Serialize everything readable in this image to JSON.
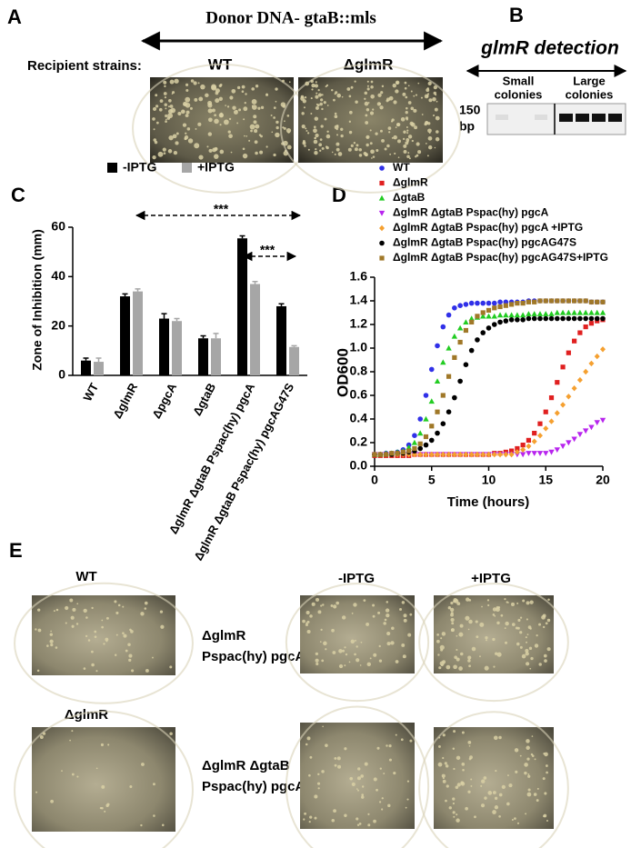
{
  "panels": {
    "A": {
      "label": "A",
      "title": "Donor DNA- gtaB::mls",
      "recipient_label": "Recipient strains:",
      "strains": [
        "WT",
        "ΔglmR"
      ]
    },
    "B": {
      "label": "B",
      "title": "glmR detection",
      "lanes": [
        [
          "Small",
          "colonies"
        ],
        [
          "Large",
          "colonies"
        ]
      ],
      "size_marker": [
        "150",
        "bp"
      ]
    },
    "C": {
      "label": "C"
    },
    "D": {
      "label": "D"
    },
    "E": {
      "label": "E",
      "wt": "WT",
      "glmr": "ΔglmR",
      "columns": [
        "-IPTG",
        "+IPTG"
      ],
      "strain1": [
        "ΔglmR",
        "Pspac(hy) pgcA"
      ],
      "strain2": [
        "ΔglmR ΔgtaB",
        "Pspac(hy) pgcA"
      ]
    }
  },
  "chart_data": [
    {
      "type": "bar",
      "ylabel": "Zone of Inhibition (mm)",
      "categories": [
        "WT",
        "ΔglmR",
        "ΔpgcA",
        "ΔgtaB",
        "ΔglmR ΔgtaB Pspac(hy) pgcA",
        "ΔglmR ΔgtaB Pspac(hy) pgcAG47S"
      ],
      "series": [
        {
          "name": "-IPTG",
          "color": "#000000",
          "values": [
            6,
            32,
            23,
            15,
            55.5,
            28
          ],
          "errors": [
            1,
            1,
            2,
            1,
            1,
            1
          ]
        },
        {
          "name": "+IPTG",
          "color": "#a6a6a6",
          "values": [
            5.5,
            34,
            22,
            15,
            37,
            11.5
          ],
          "errors": [
            1.5,
            1,
            1,
            2,
            1,
            0.5
          ]
        }
      ],
      "ylim": [
        0,
        60
      ],
      "yticks": [
        0,
        20,
        40,
        60
      ],
      "grid": false,
      "legend": "top",
      "annotations": [
        "***",
        "***"
      ]
    },
    {
      "type": "scatter",
      "xlabel": "Time (hours)",
      "ylabel": "OD600",
      "x": [
        0,
        0.5,
        1,
        1.5,
        2,
        2.5,
        3,
        3.5,
        4,
        4.5,
        5,
        5.5,
        6,
        6.5,
        7,
        7.5,
        8,
        8.5,
        9,
        9.5,
        10,
        10.5,
        11,
        11.5,
        12,
        12.5,
        13,
        13.5,
        14,
        14.5,
        15,
        15.5,
        16,
        16.5,
        17,
        17.5,
        18,
        18.5,
        19,
        19.5,
        20
      ],
      "series": [
        {
          "name": "WT",
          "color": "#3030e8",
          "marker": "circle",
          "values": [
            0.1,
            0.1,
            0.11,
            0.11,
            0.12,
            0.14,
            0.18,
            0.26,
            0.4,
            0.6,
            0.82,
            1.02,
            1.18,
            1.28,
            1.34,
            1.36,
            1.37,
            1.38,
            1.38,
            1.38,
            1.38,
            1.38,
            1.39,
            1.39,
            1.39,
            1.39,
            1.39,
            1.4,
            1.4,
            1.4,
            1.4,
            1.4,
            1.4,
            1.4,
            1.4,
            1.4,
            1.4,
            1.4,
            1.39,
            1.39,
            1.39
          ]
        },
        {
          "name": "ΔglmR",
          "color": "#e02020",
          "marker": "square",
          "values": [
            0.09,
            0.09,
            0.09,
            0.09,
            0.09,
            0.09,
            0.09,
            0.1,
            0.1,
            0.1,
            0.1,
            0.1,
            0.1,
            0.1,
            0.1,
            0.1,
            0.1,
            0.1,
            0.1,
            0.1,
            0.1,
            0.11,
            0.11,
            0.12,
            0.13,
            0.15,
            0.18,
            0.22,
            0.28,
            0.36,
            0.46,
            0.58,
            0.71,
            0.84,
            0.96,
            1.06,
            1.13,
            1.18,
            1.21,
            1.23,
            1.24
          ]
        },
        {
          "name": "ΔgtaB",
          "color": "#22cc22",
          "marker": "triangle",
          "values": [
            0.1,
            0.1,
            0.11,
            0.11,
            0.12,
            0.13,
            0.16,
            0.2,
            0.28,
            0.4,
            0.55,
            0.72,
            0.88,
            1.0,
            1.1,
            1.17,
            1.22,
            1.25,
            1.26,
            1.27,
            1.27,
            1.27,
            1.28,
            1.28,
            1.28,
            1.28,
            1.28,
            1.29,
            1.29,
            1.29,
            1.29,
            1.29,
            1.3,
            1.3,
            1.3,
            1.3,
            1.3,
            1.3,
            1.3,
            1.3,
            1.3
          ]
        },
        {
          "name": "ΔglmR ΔgtaB Pspac(hy) pgcA",
          "color": "#b825ee",
          "marker": "triangle-down",
          "values": [
            0.1,
            0.1,
            0.1,
            0.1,
            0.1,
            0.1,
            0.1,
            0.1,
            0.1,
            0.1,
            0.1,
            0.1,
            0.1,
            0.1,
            0.1,
            0.1,
            0.1,
            0.1,
            0.1,
            0.1,
            0.1,
            0.1,
            0.1,
            0.1,
            0.1,
            0.1,
            0.1,
            0.11,
            0.11,
            0.11,
            0.11,
            0.12,
            0.14,
            0.17,
            0.2,
            0.23,
            0.27,
            0.3,
            0.33,
            0.37,
            0.39
          ]
        },
        {
          "name": "ΔglmR ΔgtaB Pspac(hy) pgcA +IPTG",
          "color": "#f5a030",
          "marker": "diamond",
          "values": [
            0.1,
            0.1,
            0.1,
            0.1,
            0.1,
            0.1,
            0.1,
            0.1,
            0.1,
            0.1,
            0.1,
            0.1,
            0.1,
            0.1,
            0.1,
            0.1,
            0.1,
            0.1,
            0.1,
            0.1,
            0.1,
            0.1,
            0.1,
            0.1,
            0.1,
            0.12,
            0.14,
            0.17,
            0.21,
            0.26,
            0.32,
            0.38,
            0.45,
            0.52,
            0.59,
            0.66,
            0.73,
            0.8,
            0.87,
            0.93,
            0.99
          ]
        },
        {
          "name": "ΔglmR ΔgtaB Pspac(hy) pgcAG47S",
          "color": "#000000",
          "marker": "circle",
          "values": [
            0.1,
            0.1,
            0.1,
            0.1,
            0.11,
            0.11,
            0.12,
            0.13,
            0.15,
            0.18,
            0.22,
            0.28,
            0.36,
            0.46,
            0.58,
            0.72,
            0.86,
            0.98,
            1.07,
            1.13,
            1.17,
            1.2,
            1.22,
            1.23,
            1.24,
            1.24,
            1.24,
            1.25,
            1.25,
            1.25,
            1.25,
            1.25,
            1.25,
            1.25,
            1.25,
            1.25,
            1.25,
            1.25,
            1.25,
            1.25,
            1.25
          ]
        },
        {
          "name": "ΔglmR ΔgtaB Pspac(hy) pgcAG47S+IPTG",
          "color": "#a07828",
          "marker": "square",
          "values": [
            0.1,
            0.1,
            0.1,
            0.11,
            0.11,
            0.12,
            0.13,
            0.15,
            0.19,
            0.25,
            0.34,
            0.46,
            0.6,
            0.76,
            0.92,
            1.05,
            1.15,
            1.22,
            1.27,
            1.3,
            1.32,
            1.34,
            1.35,
            1.36,
            1.37,
            1.38,
            1.38,
            1.39,
            1.39,
            1.4,
            1.4,
            1.4,
            1.4,
            1.4,
            1.4,
            1.4,
            1.4,
            1.4,
            1.39,
            1.39,
            1.39
          ]
        }
      ],
      "xlim": [
        0,
        20
      ],
      "xticks": [
        0,
        5,
        10,
        15,
        20
      ],
      "ylim": [
        0,
        1.6
      ],
      "yticks": [
        {
          "value": 0,
          "label": "0.0"
        },
        0.2,
        0.4,
        0.6,
        0.8,
        {
          "value": 1,
          "label": "1.0"
        },
        1.2,
        1.4,
        1.6
      ],
      "grid": false,
      "legend": "top-left"
    }
  ]
}
